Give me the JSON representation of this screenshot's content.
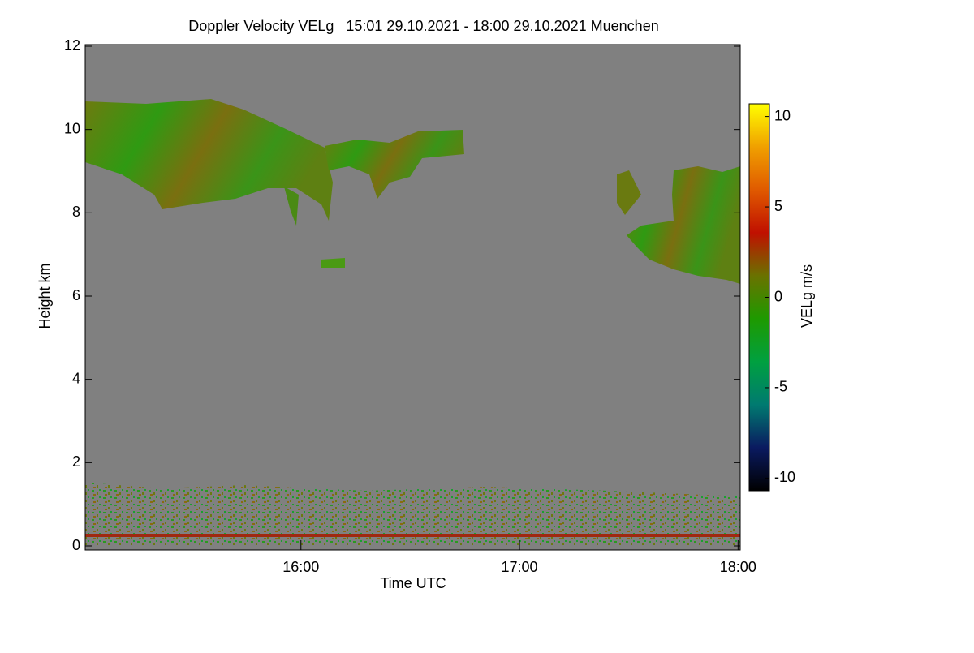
{
  "chart_data": {
    "type": "heatmap",
    "title": "Doppler Velocity VELg   15:01 29.10.2021 - 18:00 29.10.2021 Muenchen",
    "xlabel": "Time UTC",
    "ylabel": "Height km",
    "xlim": [
      15.0167,
      18.01
    ],
    "xticks": [
      {
        "value": 16,
        "label": "16:00"
      },
      {
        "value": 17,
        "label": "17:00"
      },
      {
        "value": 18,
        "label": "18:00"
      }
    ],
    "ylim": [
      0,
      12
    ],
    "yticks": [
      0,
      2,
      4,
      6,
      8,
      10,
      12
    ],
    "background": "#808080",
    "colorbar": {
      "label": "VELg m/s",
      "lim": [
        -10.7,
        10.7
      ],
      "ticks": [
        -10,
        -5,
        0,
        5,
        10
      ],
      "colors": [
        "#000000",
        "#0a1a60",
        "#007a70",
        "#00a040",
        "#1e9a00",
        "#6a7200",
        "#c01000",
        "#e05a00",
        "#f0a000",
        "#ffff00"
      ]
    }
  }
}
